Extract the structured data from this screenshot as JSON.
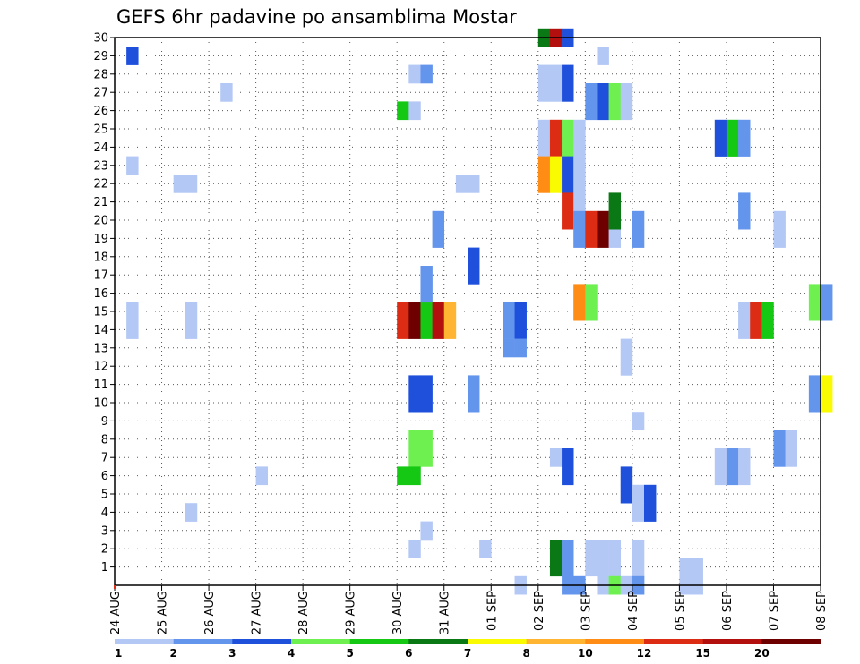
{
  "chart_data": {
    "type": "heatmap",
    "title": "GEFS 6hr padavine po ansamblima Mostar",
    "y_ticks": [
      "1",
      "2",
      "3",
      "4",
      "5",
      "6",
      "7",
      "8",
      "9",
      "10",
      "11",
      "12",
      "13",
      "14",
      "15",
      "16",
      "17",
      "18",
      "19",
      "20",
      "21",
      "22",
      "23",
      "24",
      "25",
      "26",
      "27",
      "28",
      "29",
      "30"
    ],
    "x_ticks": [
      "24 AUG",
      "25 AUG",
      "26 AUG",
      "27 AUG",
      "28 AUG",
      "29 AUG",
      "30 AUG",
      "31 AUG",
      "01 SEP",
      "02 SEP",
      "03 SEP",
      "04 SEP",
      "05 SEP",
      "06 SEP",
      "07 SEP",
      "08 SEP"
    ],
    "x_range_days": [
      0,
      15
    ],
    "y_range": [
      0,
      30
    ],
    "grid": true,
    "legend": {
      "position": "bottom",
      "thresholds": [
        "1",
        "2",
        "3",
        "4",
        "5",
        "6",
        "7",
        "8",
        "10",
        "12",
        "15",
        "20"
      ],
      "colors": [
        "#b4c8f5",
        "#6495ed",
        "#1e50dc",
        "#6ef050",
        "#14c814",
        "#0a7814",
        "#fafa00",
        "#ffb432",
        "#ff8c14",
        "#dc2d14",
        "#b40f0f",
        "#6e0000"
      ]
    },
    "cells": [
      [
        0.25,
        29,
        3
      ],
      [
        2.25,
        27,
        1
      ],
      [
        0.25,
        23,
        1
      ],
      [
        1.25,
        22,
        1
      ],
      [
        1.5,
        22,
        1
      ],
      [
        7.25,
        22,
        1
      ],
      [
        7.5,
        22,
        1
      ],
      [
        0.25,
        15,
        1
      ],
      [
        1.5,
        15,
        1
      ],
      [
        0.25,
        14,
        1
      ],
      [
        1.5,
        14,
        1
      ],
      [
        3,
        6,
        1
      ],
      [
        1.5,
        4,
        1
      ],
      [
        6,
        26,
        5
      ],
      [
        6.25,
        26,
        1
      ],
      [
        6.25,
        28,
        1
      ],
      [
        6.5,
        28,
        2
      ],
      [
        6.75,
        20,
        2
      ],
      [
        6.75,
        19,
        2
      ],
      [
        6,
        15,
        10
      ],
      [
        6.25,
        15,
        12
      ],
      [
        6.5,
        15,
        5
      ],
      [
        6.75,
        15,
        11
      ],
      [
        7,
        15,
        8
      ],
      [
        6,
        14,
        10
      ],
      [
        6.25,
        14,
        12
      ],
      [
        6.5,
        14,
        5
      ],
      [
        6.75,
        14,
        11
      ],
      [
        7,
        14,
        8
      ],
      [
        6.5,
        17,
        2
      ],
      [
        6.5,
        16,
        2
      ],
      [
        7.5,
        18,
        3
      ],
      [
        7.5,
        17,
        3
      ],
      [
        6.25,
        11,
        3
      ],
      [
        6.5,
        11,
        3
      ],
      [
        6.25,
        10,
        3
      ],
      [
        6.5,
        10,
        3
      ],
      [
        7.5,
        11,
        2
      ],
      [
        7.5,
        10,
        2
      ],
      [
        6.25,
        8,
        4
      ],
      [
        6.5,
        8,
        4
      ],
      [
        6.25,
        7,
        4
      ],
      [
        6.5,
        7,
        4
      ],
      [
        6,
        6,
        5
      ],
      [
        6.25,
        6,
        5
      ],
      [
        6.5,
        3,
        1
      ],
      [
        6.25,
        2,
        1
      ],
      [
        7.75,
        2,
        1
      ],
      [
        8.5,
        0,
        1
      ],
      [
        8.25,
        15,
        2
      ],
      [
        8.5,
        15,
        3
      ],
      [
        8.25,
        14,
        2
      ],
      [
        8.5,
        14,
        3
      ],
      [
        8.25,
        13,
        2
      ],
      [
        8.5,
        13,
        2
      ],
      [
        9,
        30,
        6
      ],
      [
        9.25,
        30,
        11
      ],
      [
        9.5,
        30,
        3
      ],
      [
        9,
        28,
        1
      ],
      [
        9.25,
        28,
        1
      ],
      [
        9.5,
        28,
        3
      ],
      [
        9,
        27,
        1
      ],
      [
        9.25,
        27,
        1
      ],
      [
        9.5,
        27,
        3
      ],
      [
        9,
        25,
        1
      ],
      [
        9.25,
        25,
        10
      ],
      [
        9.5,
        25,
        4
      ],
      [
        9.75,
        25,
        1
      ],
      [
        9,
        24,
        1
      ],
      [
        9.25,
        24,
        10
      ],
      [
        9.5,
        24,
        4
      ],
      [
        9.75,
        24,
        1
      ],
      [
        9,
        23,
        9
      ],
      [
        9.25,
        23,
        7
      ],
      [
        9.5,
        23,
        3
      ],
      [
        9.75,
        23,
        1
      ],
      [
        9,
        22,
        9
      ],
      [
        9.25,
        22,
        7
      ],
      [
        9.5,
        22,
        3
      ],
      [
        9.75,
        22,
        1
      ],
      [
        9.5,
        21,
        10
      ],
      [
        9.75,
        21,
        1
      ],
      [
        9.5,
        20,
        10
      ],
      [
        9.75,
        20,
        1
      ],
      [
        9.75,
        20,
        2
      ],
      [
        10,
        20,
        10
      ],
      [
        10.25,
        20,
        12
      ],
      [
        10.5,
        20,
        1
      ],
      [
        9.75,
        19,
        2
      ],
      [
        10,
        19,
        10
      ],
      [
        10.25,
        19,
        12
      ],
      [
        10.5,
        19,
        1
      ],
      [
        10.5,
        21,
        6
      ],
      [
        10.5,
        20,
        6
      ],
      [
        11,
        20,
        2
      ],
      [
        11,
        19,
        2
      ],
      [
        9.75,
        16,
        9
      ],
      [
        10,
        16,
        4
      ],
      [
        9.75,
        15,
        9
      ],
      [
        10,
        15,
        4
      ],
      [
        10.25,
        29,
        1
      ],
      [
        10,
        27,
        2
      ],
      [
        10.25,
        27,
        3
      ],
      [
        10.5,
        27,
        4
      ],
      [
        10.75,
        27,
        1
      ],
      [
        10,
        26,
        2
      ],
      [
        10.25,
        26,
        3
      ],
      [
        10.5,
        26,
        4
      ],
      [
        10.75,
        26,
        1
      ],
      [
        9.25,
        7,
        1
      ],
      [
        9.5,
        7,
        3
      ],
      [
        9.5,
        6,
        3
      ],
      [
        9.25,
        2,
        6
      ],
      [
        9.5,
        2,
        2
      ],
      [
        9.25,
        1,
        6
      ],
      [
        9.5,
        1,
        2
      ],
      [
        10,
        2,
        1
      ],
      [
        10.25,
        2,
        1
      ],
      [
        10.5,
        2,
        1
      ],
      [
        10,
        1,
        1
      ],
      [
        10.25,
        1,
        1
      ],
      [
        10.5,
        1,
        1
      ],
      [
        11,
        2,
        1
      ],
      [
        11,
        1,
        1
      ],
      [
        11,
        0,
        1
      ],
      [
        9.5,
        0,
        2
      ],
      [
        9.75,
        0,
        2
      ],
      [
        10.25,
        0,
        1
      ],
      [
        10.5,
        0,
        4
      ],
      [
        10.75,
        0,
        1
      ],
      [
        11,
        0,
        2
      ],
      [
        10.75,
        13,
        1
      ],
      [
        10.75,
        12,
        1
      ],
      [
        11,
        9,
        1
      ],
      [
        10.75,
        6,
        3
      ],
      [
        10.75,
        5,
        3
      ],
      [
        11,
        5,
        1
      ],
      [
        11.25,
        5,
        3
      ],
      [
        11,
        4,
        1
      ],
      [
        11.25,
        4,
        3
      ],
      [
        12,
        1,
        1
      ],
      [
        12.25,
        1,
        1
      ],
      [
        12,
        0,
        1
      ],
      [
        12.25,
        0,
        1
      ],
      [
        12.75,
        7,
        1
      ],
      [
        13,
        7,
        2
      ],
      [
        13.25,
        7,
        1
      ],
      [
        12.75,
        6,
        1
      ],
      [
        13,
        6,
        2
      ],
      [
        13.25,
        6,
        1
      ],
      [
        12.75,
        25,
        3
      ],
      [
        13,
        25,
        5
      ],
      [
        13.25,
        25,
        2
      ],
      [
        12.75,
        24,
        3
      ],
      [
        13,
        24,
        5
      ],
      [
        13.25,
        24,
        2
      ],
      [
        13.25,
        21,
        2
      ],
      [
        13.25,
        20,
        2
      ],
      [
        14,
        20,
        1
      ],
      [
        14,
        19,
        1
      ],
      [
        13.25,
        15,
        1
      ],
      [
        13.5,
        15,
        10
      ],
      [
        13.75,
        15,
        5
      ],
      [
        13.25,
        14,
        1
      ],
      [
        13.5,
        14,
        10
      ],
      [
        13.75,
        14,
        5
      ],
      [
        14,
        8,
        2
      ],
      [
        14.25,
        8,
        1
      ],
      [
        14,
        7,
        2
      ],
      [
        14.25,
        7,
        1
      ],
      [
        14.75,
        16,
        4
      ],
      [
        15,
        16,
        2
      ],
      [
        14.75,
        15,
        4
      ],
      [
        15,
        15,
        2
      ],
      [
        14.75,
        11,
        2
      ],
      [
        15,
        11,
        7
      ],
      [
        14.75,
        10,
        2
      ],
      [
        15,
        10,
        7
      ]
    ]
  }
}
